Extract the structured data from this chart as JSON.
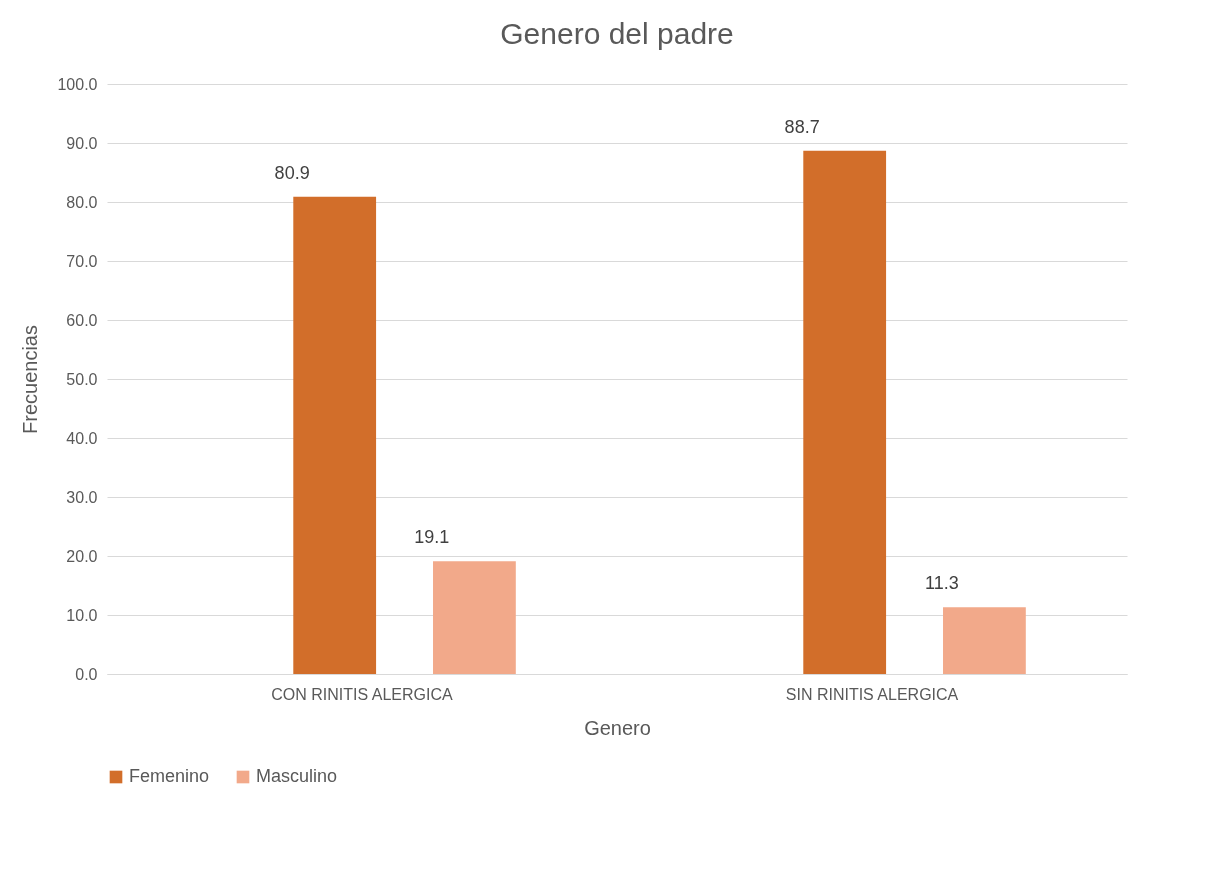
{
  "chart_data": {
    "type": "bar",
    "title": "Genero del padre",
    "xlabel": "Genero",
    "ylabel": "Frecuencias",
    "categories": [
      "CON RINITIS ALERGICA",
      "SIN RINITIS ALERGICA"
    ],
    "series": [
      {
        "name": "Femenino",
        "color": "#d26e2a",
        "values": [
          80.9,
          88.7
        ]
      },
      {
        "name": "Masculino",
        "color": "#f2a98a",
        "values": [
          19.1,
          11.3
        ]
      }
    ],
    "ylim": [
      0,
      100
    ],
    "yticks": [
      {
        "value": 0,
        "label": "0.0"
      },
      {
        "value": 10,
        "label": "10.0"
      },
      {
        "value": 20,
        "label": "20.0"
      },
      {
        "value": 30,
        "label": "30.0"
      },
      {
        "value": 40,
        "label": "40.0"
      },
      {
        "value": 50,
        "label": "50.0"
      },
      {
        "value": 60,
        "label": "60.0"
      },
      {
        "value": 70,
        "label": "70.0"
      },
      {
        "value": 80,
        "label": "80.0"
      },
      {
        "value": 90,
        "label": "90.0"
      },
      {
        "value": 100,
        "label": "100.0"
      }
    ],
    "grid": "y",
    "legend": "bottom",
    "data_labels": true
  }
}
